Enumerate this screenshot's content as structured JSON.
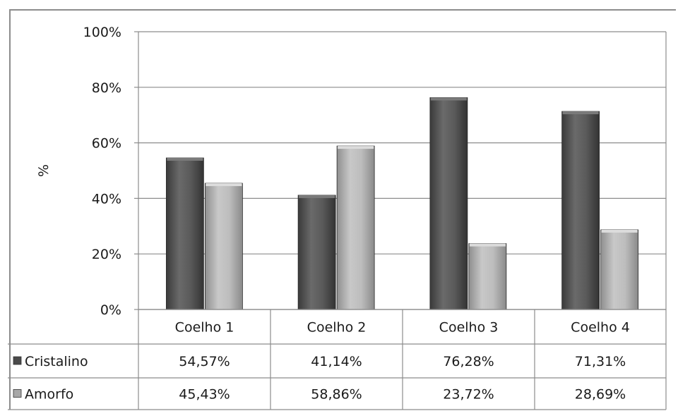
{
  "chart_data": {
    "type": "bar",
    "title": "",
    "xlabel": "",
    "ylabel": "%",
    "ylim": [
      0,
      100
    ],
    "yticks": [
      "0%",
      "20%",
      "40%",
      "60%",
      "80%",
      "100%"
    ],
    "grid": true,
    "legend": "data-table-left",
    "categories": [
      "Coelho 1",
      "Coelho 2",
      "Coelho 3",
      "Coelho 4"
    ],
    "series": [
      {
        "name": "Cristalino",
        "values": [
          54.57,
          41.14,
          76.28,
          71.31
        ],
        "labels": [
          "54,57%",
          "41,14%",
          "76,28%",
          "71,31%"
        ],
        "color": "#555555"
      },
      {
        "name": "Amorfo",
        "values": [
          45.43,
          58.86,
          23.72,
          28.69
        ],
        "labels": [
          "45,43%",
          "58,86%",
          "23,72%",
          "28,69%"
        ],
        "color": "#b5b5b5"
      }
    ]
  }
}
